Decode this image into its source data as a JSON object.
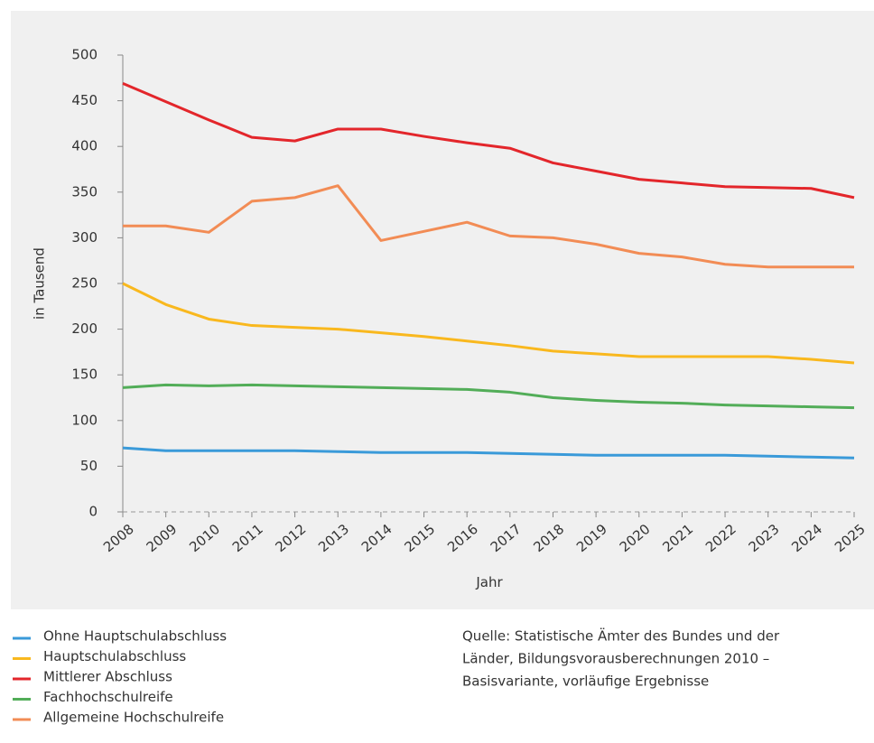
{
  "chart_data": {
    "type": "line",
    "ylabel": "in Tausend",
    "xlabel": "Jahr",
    "categories": [
      "2008",
      "2009",
      "2010",
      "2011",
      "2012",
      "2013",
      "2014",
      "2015",
      "2016",
      "2017",
      "2018",
      "2019",
      "2020",
      "2021",
      "2022",
      "2023",
      "2024",
      "2025"
    ],
    "series": [
      {
        "name": "Ohne Hauptschulabschluss",
        "color": "#3a9ad9",
        "values": [
          70,
          67,
          67,
          67,
          67,
          66,
          65,
          65,
          65,
          64,
          63,
          62,
          62,
          62,
          62,
          61,
          60,
          59
        ]
      },
      {
        "name": "Hauptschulabschluss",
        "color": "#f9b81e",
        "values": [
          250,
          227,
          211,
          204,
          202,
          200,
          196,
          192,
          187,
          182,
          176,
          173,
          170,
          170,
          170,
          170,
          167,
          163
        ]
      },
      {
        "name": "Mittlerer Abschluss",
        "color": "#e3262b",
        "values": [
          469,
          449,
          429,
          410,
          406,
          419,
          419,
          411,
          404,
          398,
          382,
          373,
          364,
          360,
          356,
          355,
          354,
          344
        ]
      },
      {
        "name": "Fachhochschulreife",
        "color": "#52ad58",
        "values": [
          136,
          139,
          138,
          139,
          138,
          137,
          136,
          135,
          134,
          131,
          125,
          122,
          120,
          119,
          117,
          116,
          115,
          114
        ]
      },
      {
        "name": "Allgemeine Hochschulreife",
        "color": "#f28c55",
        "values": [
          313,
          313,
          306,
          340,
          344,
          357,
          297,
          307,
          317,
          302,
          300,
          293,
          283,
          279,
          271,
          268,
          268,
          268
        ]
      }
    ],
    "ylim": [
      0,
      500
    ],
    "yticks": [
      0,
      50,
      100,
      150,
      200,
      250,
      300,
      350,
      400,
      450,
      500
    ],
    "source": [
      "Quelle: Statistische Ämter des Bundes und der",
      "Länder, Bildungsvorausberechnungen 2010 –",
      "Basisvariante, vorläufige Ergebnisse"
    ]
  }
}
